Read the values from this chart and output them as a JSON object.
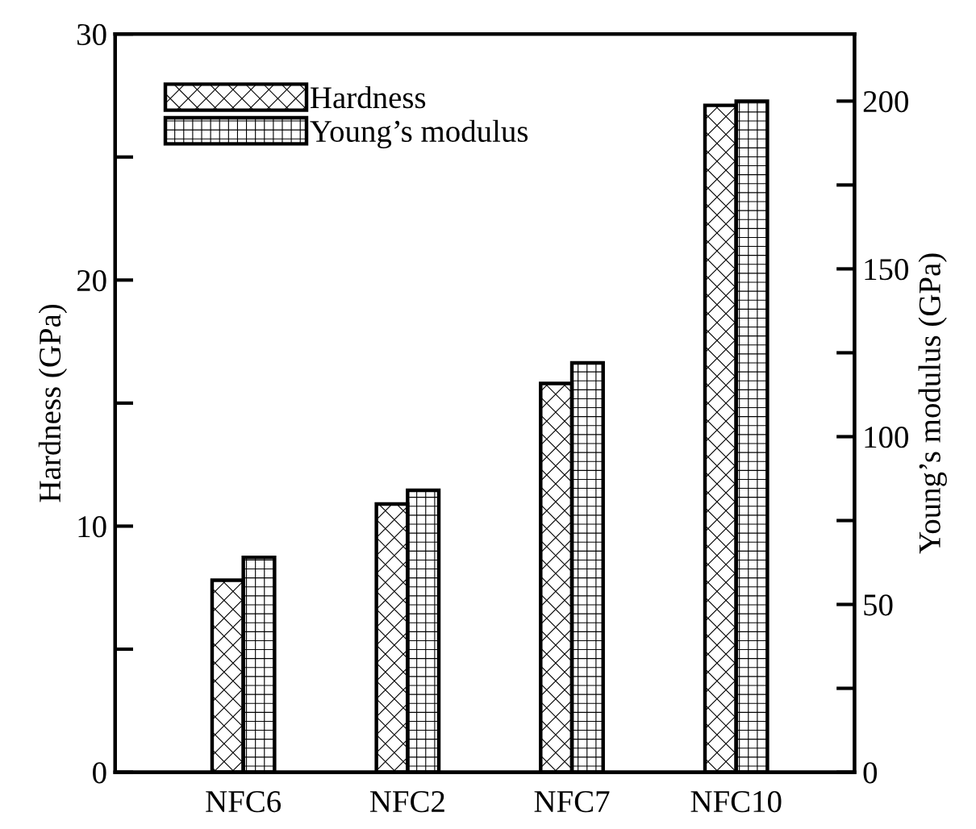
{
  "chart_data": {
    "type": "bar",
    "categories": [
      "NFC6",
      "NFC2",
      "NFC7",
      "NFC10"
    ],
    "ylabel": "Hardness (GPa)",
    "y2label": "Young’s modulus (GPa)",
    "series": [
      {
        "name": "Hardness",
        "color": "#000000",
        "values": [
          7.8,
          10.9,
          15.8,
          27.1
        ]
      },
      {
        "name": "Young’s modulus",
        "color": "#000000",
        "axis": "y2",
        "values": [
          64,
          84,
          122,
          200
        ]
      }
    ],
    "ylim": [
      0,
      30
    ],
    "yticks": [
      0,
      {
        "value": 5,
        "label": null
      },
      10,
      {
        "value": 15,
        "label": null
      },
      20,
      {
        "value": 25,
        "label": null
      },
      30
    ],
    "y2lim": [
      0,
      220
    ],
    "y2ticks": [
      0,
      {
        "value": 25,
        "label": null
      },
      50,
      {
        "value": 75,
        "label": null
      },
      100,
      {
        "value": 125,
        "label": null
      },
      150,
      {
        "value": 175,
        "label": null
      },
      200
    ],
    "legend": "top left",
    "grid": false
  }
}
